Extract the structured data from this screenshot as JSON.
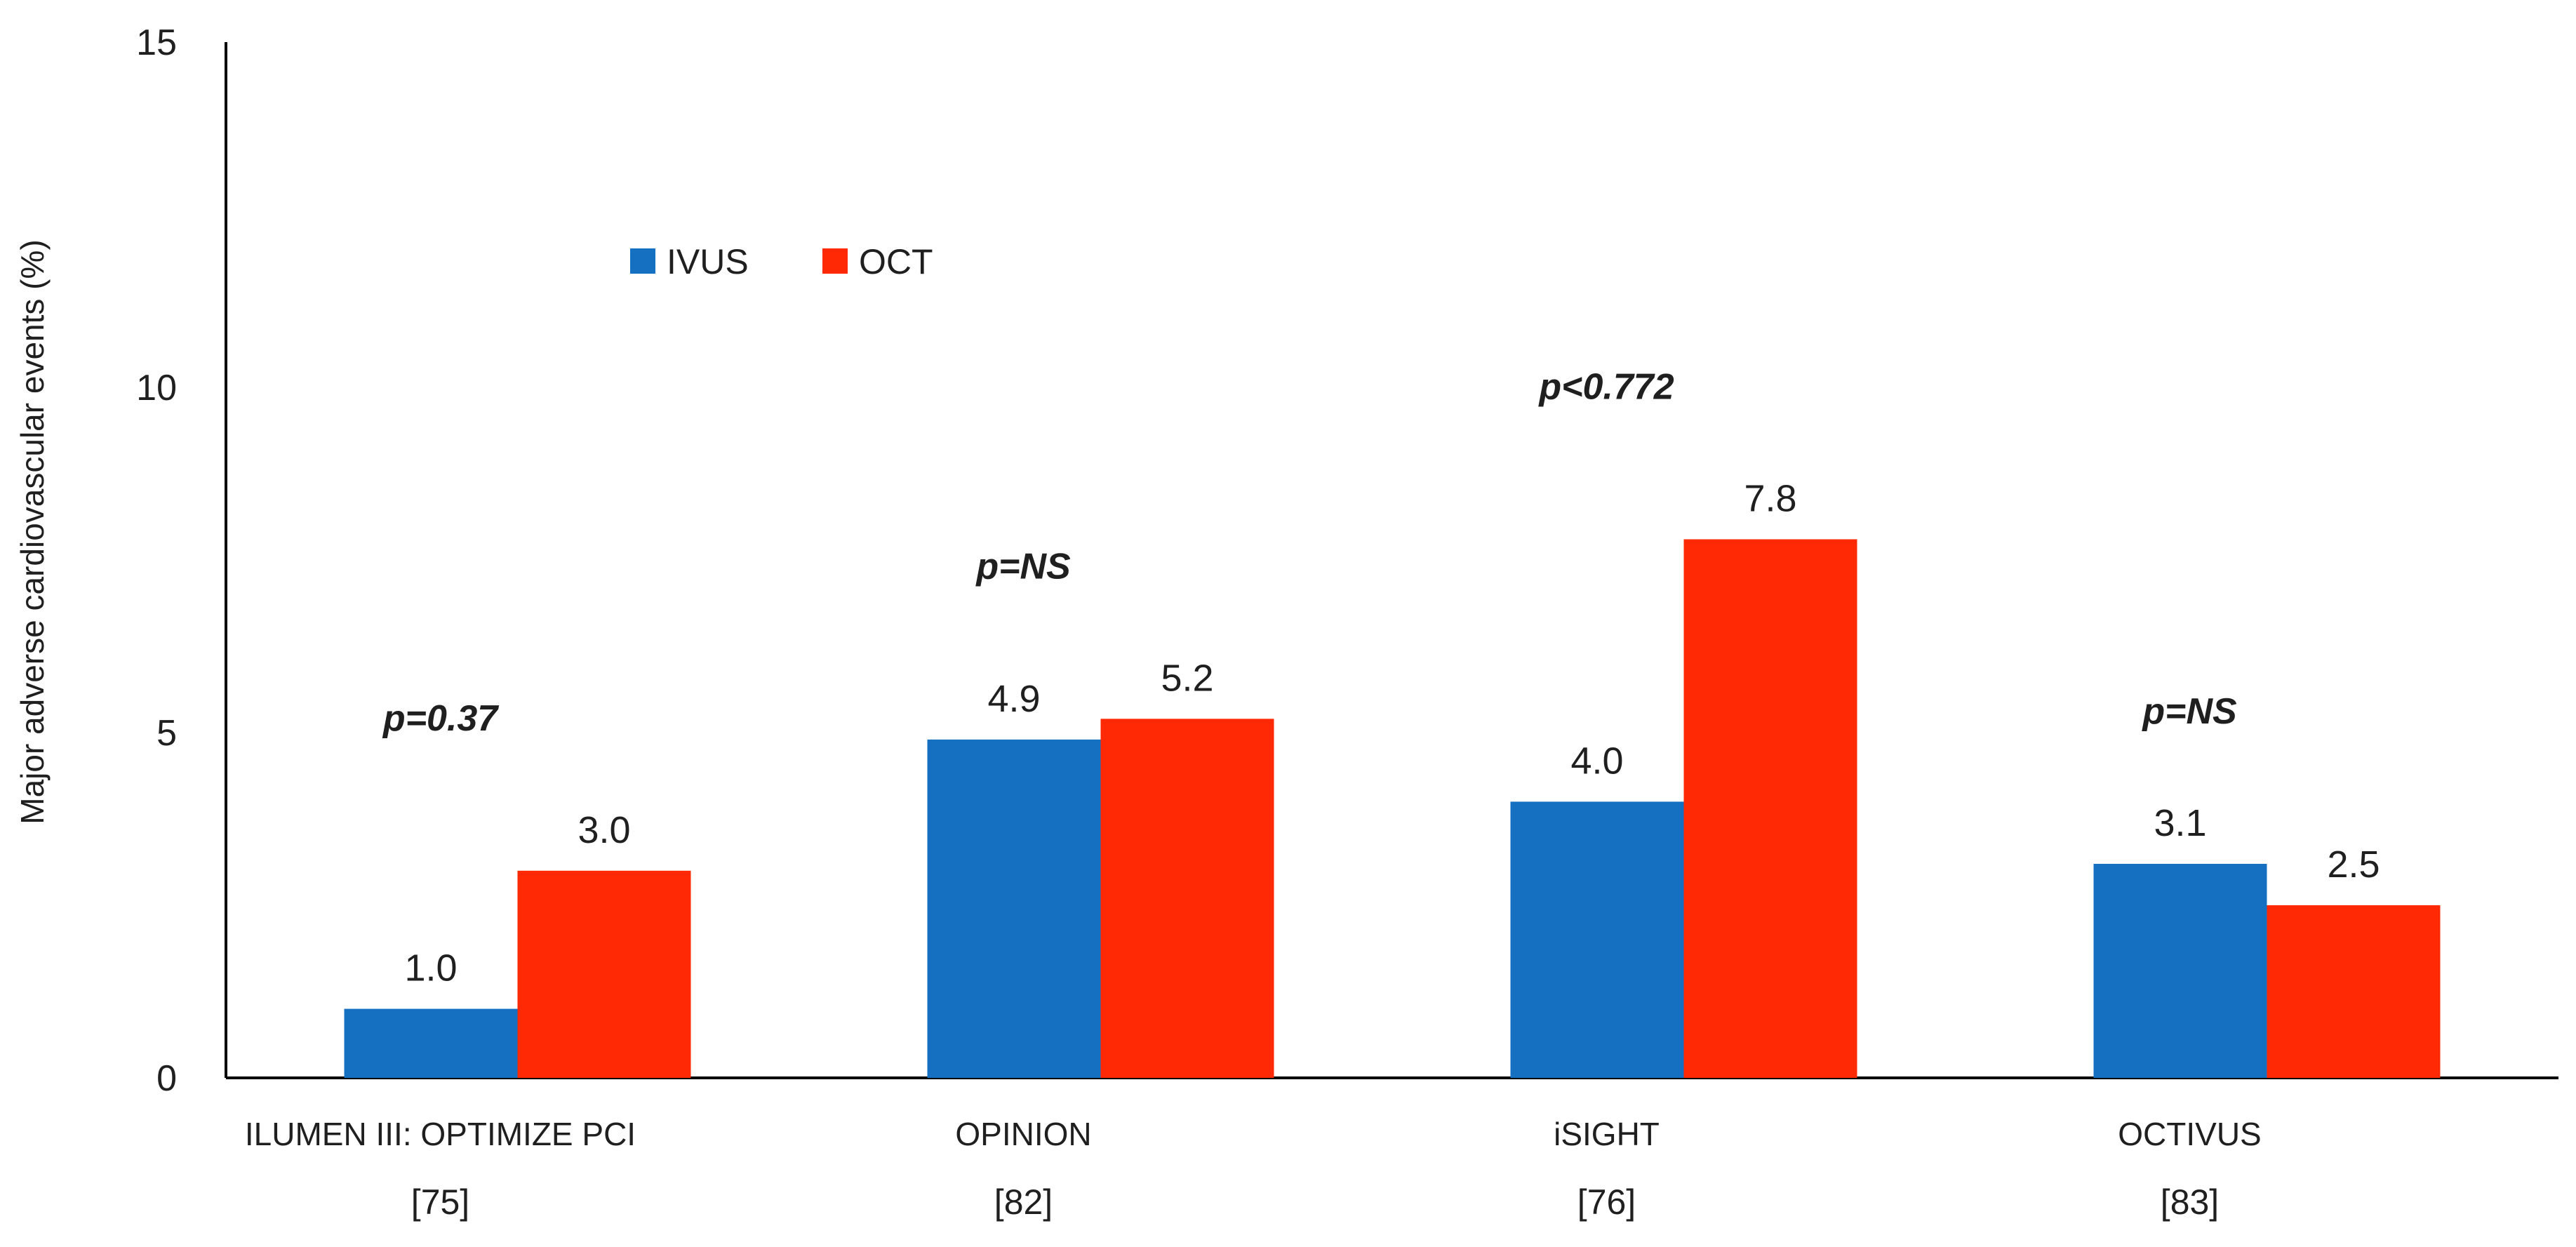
{
  "chart_data": {
    "type": "bar",
    "title": "",
    "xlabel": "",
    "ylabel": "Major adverse cardiovascular events (%)",
    "ylim": [
      0,
      15
    ],
    "yticks": [
      0,
      5,
      10,
      15
    ],
    "grid": false,
    "legend_position": "top-left",
    "categories": [
      {
        "name": "ILUMEN III: OPTIMIZE PCI",
        "ref": "[75]",
        "p_value": "p=0.37"
      },
      {
        "name": "OPINION",
        "ref": "[82]",
        "p_value": "p=NS"
      },
      {
        "name": "iSIGHT",
        "ref": "[76]",
        "p_value": "p<0.772"
      },
      {
        "name": "OCTIVUS",
        "ref": "[83]",
        "p_value": "p=NS"
      }
    ],
    "series": [
      {
        "name": "IVUS",
        "color": "#1570C1",
        "values": [
          1.0,
          4.9,
          4.0,
          3.1
        ]
      },
      {
        "name": "OCT",
        "color": "#FF2A05",
        "values": [
          3.0,
          5.2,
          7.8,
          2.5
        ]
      }
    ]
  }
}
